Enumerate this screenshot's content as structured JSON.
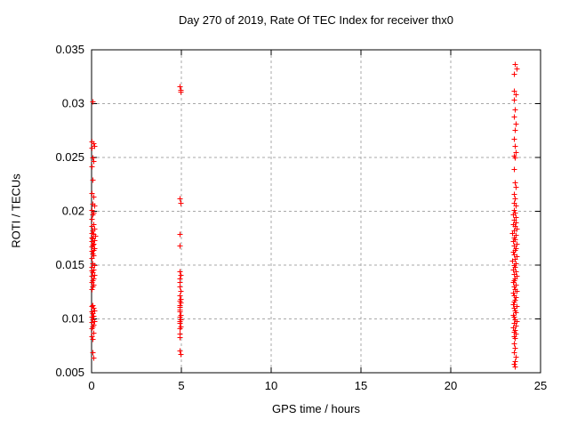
{
  "title": "Day 270 of 2019, Rate Of TEC Index for receiver thx0",
  "colors": {
    "marker": "#ff0000",
    "grid": "#a8a8a8",
    "axis": "#000000",
    "background": "#ffffff",
    "text": "#000000"
  },
  "chart_data": {
    "type": "scatter",
    "title": "Day 270 of 2019, Rate Of TEC Index for receiver thx0",
    "xlabel": "GPS time / hours",
    "ylabel": "ROTI / TECUs",
    "xlim": [
      0,
      25
    ],
    "ylim": [
      0.005,
      0.035
    ],
    "xticks": [
      0,
      5,
      10,
      15,
      20,
      25
    ],
    "xtick_labels": [
      "0",
      "5",
      "10",
      "15",
      "20",
      "25"
    ],
    "yticks": [
      0.005,
      0.01,
      0.015,
      0.02,
      0.025,
      0.03,
      0.035
    ],
    "ytick_labels": [
      "0.005",
      "0.01",
      "0.015",
      "0.02",
      "0.025",
      "0.03",
      "0.035"
    ],
    "grid": true,
    "legend": "none",
    "marker": {
      "shape": "plus",
      "color": "#ff0000",
      "size": 7
    },
    "series": [
      {
        "name": "ROTI",
        "points": [
          [
            0.05,
            0.0302
          ],
          [
            0.0,
            0.0265
          ],
          [
            0.1,
            0.0263
          ],
          [
            0.15,
            0.0261
          ],
          [
            0.0,
            0.0259
          ],
          [
            0.05,
            0.025
          ],
          [
            0.1,
            0.0247
          ],
          [
            0.0,
            0.0242
          ],
          [
            0.05,
            0.0229
          ],
          [
            0.0,
            0.0217
          ],
          [
            0.1,
            0.0214
          ],
          [
            0.05,
            0.0207
          ],
          [
            0.15,
            0.0205
          ],
          [
            0.0,
            0.0201
          ],
          [
            0.1,
            0.0199
          ],
          [
            0.05,
            0.0197
          ],
          [
            0.0,
            0.0193
          ],
          [
            0.1,
            0.0188
          ],
          [
            0.0,
            0.0186
          ],
          [
            0.15,
            0.0184
          ],
          [
            0.05,
            0.0182
          ],
          [
            0.0,
            0.018
          ],
          [
            0.1,
            0.0179
          ],
          [
            0.2,
            0.0177
          ],
          [
            0.0,
            0.0176
          ],
          [
            0.05,
            0.0175
          ],
          [
            0.15,
            0.0173
          ],
          [
            0.0,
            0.0172
          ],
          [
            0.1,
            0.017
          ],
          [
            0.05,
            0.0169
          ],
          [
            0.0,
            0.0167
          ],
          [
            0.15,
            0.0166
          ],
          [
            0.1,
            0.0164
          ],
          [
            0.0,
            0.0163
          ],
          [
            0.05,
            0.0161
          ],
          [
            0.1,
            0.0159
          ],
          [
            0.0,
            0.0157
          ],
          [
            0.05,
            0.0152
          ],
          [
            0.15,
            0.015
          ],
          [
            0.0,
            0.0148
          ],
          [
            0.1,
            0.0146
          ],
          [
            0.0,
            0.0145
          ],
          [
            0.05,
            0.0143
          ],
          [
            0.15,
            0.0141
          ],
          [
            0.0,
            0.014
          ],
          [
            0.1,
            0.0138
          ],
          [
            0.05,
            0.0136
          ],
          [
            0.0,
            0.0134
          ],
          [
            0.1,
            0.0132
          ],
          [
            0.05,
            0.013
          ],
          [
            0.0,
            0.0128
          ],
          [
            0.05,
            0.0113
          ],
          [
            0.0,
            0.0112
          ],
          [
            0.1,
            0.011
          ],
          [
            0.15,
            0.0108
          ],
          [
            0.0,
            0.0107
          ],
          [
            0.05,
            0.0105
          ],
          [
            0.1,
            0.0103
          ],
          [
            0.0,
            0.0102
          ],
          [
            0.05,
            0.01
          ],
          [
            0.15,
            0.0098
          ],
          [
            0.0,
            0.0097
          ],
          [
            0.1,
            0.0095
          ],
          [
            0.05,
            0.0093
          ],
          [
            0.0,
            0.0091
          ],
          [
            0.1,
            0.0087
          ],
          [
            0.0,
            0.0084
          ],
          [
            0.05,
            0.0081
          ],
          [
            0.05,
            0.0069
          ],
          [
            0.1,
            0.0064
          ],
          [
            4.9,
            0.0316
          ],
          [
            4.93,
            0.0313
          ],
          [
            4.95,
            0.0311
          ],
          [
            4.9,
            0.0212
          ],
          [
            4.95,
            0.0208
          ],
          [
            4.9,
            0.0179
          ],
          [
            4.92,
            0.0168
          ],
          [
            4.9,
            0.0144
          ],
          [
            4.95,
            0.0141
          ],
          [
            4.88,
            0.0138
          ],
          [
            4.92,
            0.0134
          ],
          [
            4.9,
            0.013
          ],
          [
            4.95,
            0.0126
          ],
          [
            4.9,
            0.0122
          ],
          [
            4.93,
            0.0119
          ],
          [
            4.88,
            0.0117
          ],
          [
            4.95,
            0.0115
          ],
          [
            4.9,
            0.0113
          ],
          [
            4.92,
            0.0111
          ],
          [
            4.88,
            0.0109
          ],
          [
            4.9,
            0.0107
          ],
          [
            4.95,
            0.0104
          ],
          [
            4.9,
            0.0102
          ],
          [
            4.93,
            0.01
          ],
          [
            4.88,
            0.0098
          ],
          [
            4.9,
            0.0096
          ],
          [
            4.95,
            0.0093
          ],
          [
            4.9,
            0.0091
          ],
          [
            4.92,
            0.0086
          ],
          [
            4.9,
            0.0083
          ],
          [
            4.9,
            0.0071
          ],
          [
            4.93,
            0.0067
          ],
          [
            23.55,
            0.0337
          ],
          [
            23.65,
            0.0333
          ],
          [
            23.5,
            0.0328
          ],
          [
            23.5,
            0.0312
          ],
          [
            23.6,
            0.0309
          ],
          [
            23.5,
            0.0304
          ],
          [
            23.55,
            0.0295
          ],
          [
            23.5,
            0.0288
          ],
          [
            23.6,
            0.0281
          ],
          [
            23.55,
            0.0276
          ],
          [
            23.5,
            0.0267
          ],
          [
            23.55,
            0.0261
          ],
          [
            23.6,
            0.0255
          ],
          [
            23.5,
            0.0252
          ],
          [
            23.55,
            0.025
          ],
          [
            23.5,
            0.0239
          ],
          [
            23.55,
            0.0227
          ],
          [
            23.6,
            0.0223
          ],
          [
            23.5,
            0.0216
          ],
          [
            23.55,
            0.0212
          ],
          [
            23.5,
            0.0208
          ],
          [
            23.6,
            0.0205
          ],
          [
            23.5,
            0.0201
          ],
          [
            23.55,
            0.0199
          ],
          [
            23.45,
            0.0197
          ],
          [
            23.6,
            0.0195
          ],
          [
            23.5,
            0.0192
          ],
          [
            23.6,
            0.019
          ],
          [
            23.45,
            0.0188
          ],
          [
            23.55,
            0.0186
          ],
          [
            23.65,
            0.0184
          ],
          [
            23.5,
            0.0182
          ],
          [
            23.4,
            0.018
          ],
          [
            23.6,
            0.0178
          ],
          [
            23.5,
            0.0176
          ],
          [
            23.55,
            0.0174
          ],
          [
            23.45,
            0.0172
          ],
          [
            23.65,
            0.017
          ],
          [
            23.5,
            0.0168
          ],
          [
            23.6,
            0.0166
          ],
          [
            23.55,
            0.0164
          ],
          [
            23.45,
            0.0162
          ],
          [
            23.5,
            0.016
          ],
          [
            23.65,
            0.0158
          ],
          [
            23.55,
            0.0156
          ],
          [
            23.4,
            0.0154
          ],
          [
            23.6,
            0.0152
          ],
          [
            23.5,
            0.015
          ],
          [
            23.55,
            0.0148
          ],
          [
            23.45,
            0.0146
          ],
          [
            23.6,
            0.0144
          ],
          [
            23.5,
            0.0142
          ],
          [
            23.65,
            0.014
          ],
          [
            23.55,
            0.0138
          ],
          [
            23.5,
            0.0136
          ],
          [
            23.45,
            0.0134
          ],
          [
            23.6,
            0.0132
          ],
          [
            23.5,
            0.013
          ],
          [
            23.55,
            0.0128
          ],
          [
            23.65,
            0.0126
          ],
          [
            23.45,
            0.0124
          ],
          [
            23.5,
            0.0122
          ],
          [
            23.6,
            0.012
          ],
          [
            23.55,
            0.0118
          ],
          [
            23.5,
            0.0116
          ],
          [
            23.45,
            0.0114
          ],
          [
            23.65,
            0.0112
          ],
          [
            23.5,
            0.011
          ],
          [
            23.55,
            0.0108
          ],
          [
            23.6,
            0.0106
          ],
          [
            23.45,
            0.0104
          ],
          [
            23.5,
            0.0102
          ],
          [
            23.55,
            0.01
          ],
          [
            23.65,
            0.0098
          ],
          [
            23.5,
            0.0096
          ],
          [
            23.6,
            0.0094
          ],
          [
            23.45,
            0.0092
          ],
          [
            23.55,
            0.009
          ],
          [
            23.5,
            0.0088
          ],
          [
            23.6,
            0.0086
          ],
          [
            23.5,
            0.0084
          ],
          [
            23.55,
            0.0082
          ],
          [
            23.5,
            0.0077
          ],
          [
            23.55,
            0.0073
          ],
          [
            23.5,
            0.0069
          ],
          [
            23.6,
            0.0065
          ],
          [
            23.55,
            0.0061
          ],
          [
            23.5,
            0.0058
          ],
          [
            23.55,
            0.0056
          ]
        ]
      }
    ]
  }
}
